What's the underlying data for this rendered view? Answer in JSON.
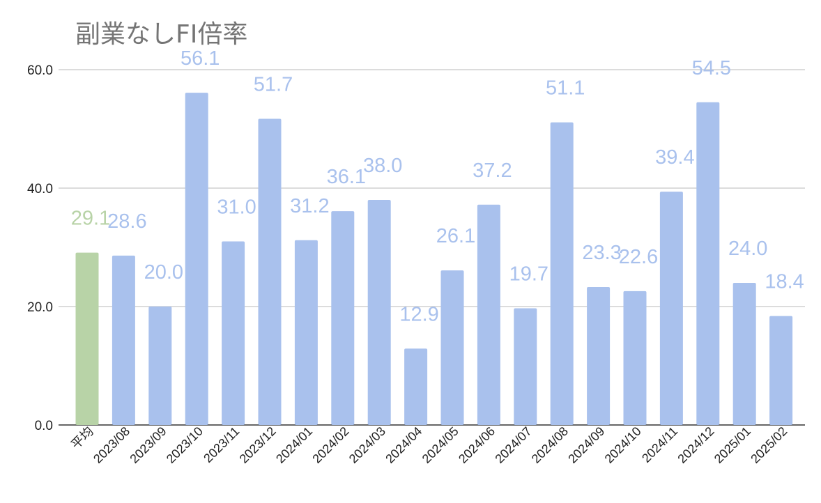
{
  "chart_data": {
    "type": "bar",
    "title": "副業なしFI倍率",
    "xlabel": "",
    "ylabel": "",
    "ylim": [
      0,
      60
    ],
    "yticks": [
      "0.0",
      "20.0",
      "40.0",
      "60.0"
    ],
    "grid": true,
    "categories": [
      "平均",
      "2023/08",
      "2023/09",
      "2023/10",
      "2023/11",
      "2023/12",
      "2024/01",
      "2024/02",
      "2024/03",
      "2024/04",
      "2024/05",
      "2024/06",
      "2024/07",
      "2024/08",
      "2024/09",
      "2024/10",
      "2024/11",
      "2024/12",
      "2025/01",
      "2025/02"
    ],
    "values": [
      29.1,
      28.6,
      20.0,
      56.1,
      31.0,
      51.7,
      31.2,
      36.1,
      38.0,
      12.9,
      26.1,
      37.2,
      19.7,
      51.1,
      23.3,
      22.6,
      39.4,
      54.5,
      24.0,
      18.4
    ],
    "data_labels": [
      "29.1",
      "28.6",
      "20.0",
      "56.1",
      "31.0",
      "51.7",
      "31.2",
      "36.1",
      "38.0",
      "12.9",
      "26.1",
      "37.2",
      "19.7",
      "51.1",
      "23.3",
      "22.6",
      "39.4",
      "54.5",
      "24.0",
      "18.4"
    ],
    "colors": {
      "average": "#b8d3a7",
      "monthly": "#a9c1ed",
      "average_label": "#b8d3a7",
      "monthly_label": "#a9c1ed"
    }
  }
}
